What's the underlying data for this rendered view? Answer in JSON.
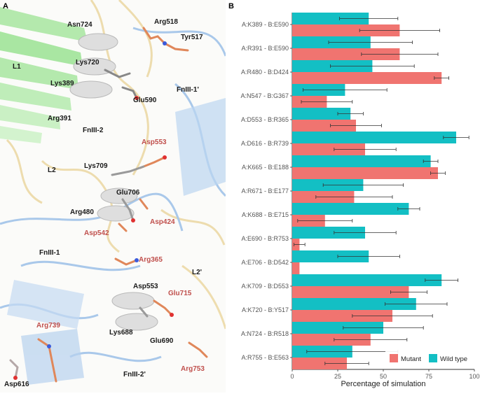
{
  "panel_a": {
    "letter": "A",
    "labels": [
      {
        "text": "Asn724",
        "color": "dark"
      },
      {
        "text": "Arg518",
        "color": "dark"
      },
      {
        "text": "Tyr517",
        "color": "dark"
      },
      {
        "text": "L1",
        "color": "dark"
      },
      {
        "text": "Lys720",
        "color": "dark"
      },
      {
        "text": "Lys389",
        "color": "dark"
      },
      {
        "text": "FnIII-1'",
        "color": "dark"
      },
      {
        "text": "Glu590",
        "color": "dark"
      },
      {
        "text": "Arg391",
        "color": "dark"
      },
      {
        "text": "FnIII-2",
        "color": "dark"
      },
      {
        "text": "Asp553",
        "color": "red"
      },
      {
        "text": "L2",
        "color": "dark"
      },
      {
        "text": "Lys709",
        "color": "dark"
      },
      {
        "text": "Glu706",
        "color": "dark"
      },
      {
        "text": "Arg480",
        "color": "dark"
      },
      {
        "text": "Asp424",
        "color": "red"
      },
      {
        "text": "Asp542",
        "color": "red"
      },
      {
        "text": "FnIII-1",
        "color": "dark"
      },
      {
        "text": "Arg365",
        "color": "red"
      },
      {
        "text": "L2'",
        "color": "dark"
      },
      {
        "text": "Asp553",
        "color": "dark"
      },
      {
        "text": "Glu715",
        "color": "red"
      },
      {
        "text": "Arg739",
        "color": "red"
      },
      {
        "text": "Lys688",
        "color": "dark"
      },
      {
        "text": "Glu690",
        "color": "dark"
      },
      {
        "text": "FnIII-2'",
        "color": "dark"
      },
      {
        "text": "Arg753",
        "color": "red"
      },
      {
        "text": "Asp616",
        "color": "dark"
      }
    ]
  },
  "panel_b": {
    "letter": "B"
  },
  "colors": {
    "mutant": "#f07470",
    "wild_type": "#13bfc4",
    "error_bar": "#333333",
    "tick_text": "#555555"
  },
  "chart_data": {
    "type": "bar",
    "orientation": "horizontal",
    "categories": [
      "A:K389 - B:E590",
      "A:R391 - B:E590",
      "A:R480 - B:D424",
      "A:N547 - B:G367",
      "A:D553 - B:R365",
      "A:D616 - B:R739",
      "A:K665 - B:E188",
      "A:R671 - B:E177",
      "A:K688 - B:E715",
      "A:E690 - B:R753",
      "A:E706 - B:D542",
      "A:K709 - B:D553",
      "A:K720 - B:Y517",
      "A:N724 - B:R518",
      "A:R755 - B:E563"
    ],
    "series": [
      {
        "name": "Wild type",
        "values": [
          42,
          43,
          44,
          29,
          32,
          90,
          76,
          39,
          64,
          40,
          42,
          82,
          68,
          50,
          33
        ],
        "errors": [
          16,
          23,
          23,
          23,
          7,
          7,
          4,
          22,
          6,
          17,
          17,
          9,
          17,
          22,
          25
        ]
      },
      {
        "name": "Mutant",
        "values": [
          59,
          59,
          82,
          19,
          35,
          40,
          80,
          34,
          18,
          4,
          4,
          64,
          55,
          43,
          30
        ],
        "errors": [
          22,
          21,
          4,
          14,
          14,
          17,
          4,
          21,
          15,
          3,
          0,
          10,
          22,
          20,
          12
        ]
      }
    ],
    "xlabel": "Percentage of simulation",
    "ylabel": "",
    "xlim": [
      0,
      100
    ],
    "xticks": [
      "0",
      "25",
      "50",
      "75",
      "100"
    ],
    "legend": [
      "Mutant",
      "Wild type"
    ],
    "legend_position": "bottom-right",
    "grid": false
  }
}
